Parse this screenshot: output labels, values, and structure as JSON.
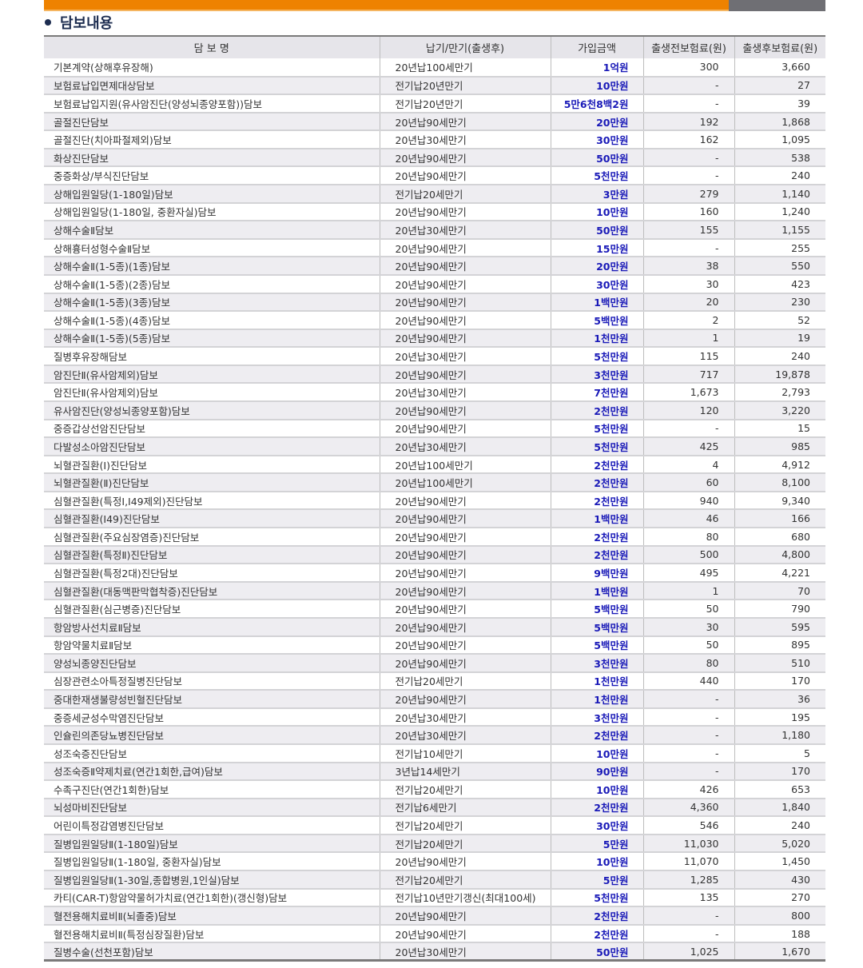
{
  "section_title": "담보내용",
  "colors": {
    "accent_orange": "#ee8200",
    "amount_blue": "#1a1ab8"
  },
  "table": {
    "headers": [
      "담 보 명",
      "납기/만기(출생후)",
      "가입금액",
      "출생전보험료(원)",
      "출생후보험료(원)"
    ],
    "rows": [
      [
        "기본계약(상해후유장해)",
        "20년납100세만기",
        "1억원",
        "300",
        "3,660"
      ],
      [
        "보험료납입면제대상담보",
        "전기납20년만기",
        "10만원",
        "-",
        "27"
      ],
      [
        "보험료납입지원(유사암진단(양성뇌종양포함))담보",
        "전기납20년만기",
        "5만6천8백2원",
        "-",
        "39"
      ],
      [
        "골절진단담보",
        "20년납90세만기",
        "20만원",
        "192",
        "1,868"
      ],
      [
        "골절진단(치아파절제외)담보",
        "20년납30세만기",
        "30만원",
        "162",
        "1,095"
      ],
      [
        "화상진단담보",
        "20년납90세만기",
        "50만원",
        "-",
        "538"
      ],
      [
        "중증화상/부식진단담보",
        "20년납90세만기",
        "5천만원",
        "-",
        "240"
      ],
      [
        "상해입원일당(1-180일)담보",
        "전기납20세만기",
        "3만원",
        "279",
        "1,140"
      ],
      [
        "상해입원일당(1-180일, 중환자실)담보",
        "20년납90세만기",
        "10만원",
        "160",
        "1,240"
      ],
      [
        "상해수술Ⅱ담보",
        "20년납30세만기",
        "50만원",
        "155",
        "1,155"
      ],
      [
        "상해흉터성형수술Ⅱ담보",
        "20년납90세만기",
        "15만원",
        "-",
        "255"
      ],
      [
        "상해수술Ⅱ(1-5종)(1종)담보",
        "20년납90세만기",
        "20만원",
        "38",
        "550"
      ],
      [
        "상해수술Ⅱ(1-5종)(2종)담보",
        "20년납90세만기",
        "30만원",
        "30",
        "423"
      ],
      [
        "상해수술Ⅱ(1-5종)(3종)담보",
        "20년납90세만기",
        "1백만원",
        "20",
        "230"
      ],
      [
        "상해수술Ⅱ(1-5종)(4종)담보",
        "20년납90세만기",
        "5백만원",
        "2",
        "52"
      ],
      [
        "상해수술Ⅱ(1-5종)(5종)담보",
        "20년납90세만기",
        "1천만원",
        "1",
        "19"
      ],
      [
        "질병후유장해담보",
        "20년납30세만기",
        "5천만원",
        "115",
        "240"
      ],
      [
        "암진단Ⅱ(유사암제외)담보",
        "20년납90세만기",
        "3천만원",
        "717",
        "19,878"
      ],
      [
        "암진단Ⅱ(유사암제외)담보",
        "20년납30세만기",
        "7천만원",
        "1,673",
        "2,793"
      ],
      [
        "유사암진단(양성뇌종양포함)담보",
        "20년납90세만기",
        "2천만원",
        "120",
        "3,220"
      ],
      [
        "중증갑상선암진단담보",
        "20년납90세만기",
        "5천만원",
        "-",
        "15"
      ],
      [
        "다발성소아암진단담보",
        "20년납30세만기",
        "5천만원",
        "425",
        "985"
      ],
      [
        "뇌혈관질환(Ⅰ)진단담보",
        "20년납100세만기",
        "2천만원",
        "4",
        "4,912"
      ],
      [
        "뇌혈관질환(Ⅱ)진단담보",
        "20년납100세만기",
        "2천만원",
        "60",
        "8,100"
      ],
      [
        "심혈관질환(특정Ⅰ,I49제외)진단담보",
        "20년납90세만기",
        "2천만원",
        "940",
        "9,340"
      ],
      [
        "심혈관질환(I49)진단담보",
        "20년납90세만기",
        "1백만원",
        "46",
        "166"
      ],
      [
        "심혈관질환(주요심장염증)진단담보",
        "20년납90세만기",
        "2천만원",
        "80",
        "680"
      ],
      [
        "심혈관질환(특정Ⅱ)진단담보",
        "20년납90세만기",
        "2천만원",
        "500",
        "4,800"
      ],
      [
        "심혈관질환(특정2대)진단담보",
        "20년납90세만기",
        "9백만원",
        "495",
        "4,221"
      ],
      [
        "심혈관질환(대동맥판막협착증)진단담보",
        "20년납90세만기",
        "1백만원",
        "1",
        "70"
      ],
      [
        "심혈관질환(심근병증)진단담보",
        "20년납90세만기",
        "5백만원",
        "50",
        "790"
      ],
      [
        "항암방사선치료Ⅱ담보",
        "20년납90세만기",
        "5백만원",
        "30",
        "595"
      ],
      [
        "항암약물치료Ⅱ담보",
        "20년납90세만기",
        "5백만원",
        "50",
        "895"
      ],
      [
        "양성뇌종양진단담보",
        "20년납90세만기",
        "3천만원",
        "80",
        "510"
      ],
      [
        "심장관련소아특정질병진단담보",
        "전기납20세만기",
        "1천만원",
        "440",
        "170"
      ],
      [
        "중대한재생불량성빈혈진단담보",
        "20년납90세만기",
        "1천만원",
        "-",
        "36"
      ],
      [
        "중증세균성수막염진단담보",
        "20년납30세만기",
        "3천만원",
        "-",
        "195"
      ],
      [
        "인슐린의존당뇨병진단담보",
        "20년납30세만기",
        "2천만원",
        "-",
        "1,180"
      ],
      [
        "성조숙증진단담보",
        "전기납10세만기",
        "10만원",
        "-",
        "5"
      ],
      [
        "성조숙증Ⅱ약제치료(연간1회한,급여)담보",
        "3년납14세만기",
        "90만원",
        "-",
        "170"
      ],
      [
        "수족구진단(연간1회한)담보",
        "전기납20세만기",
        "10만원",
        "426",
        "653"
      ],
      [
        "뇌성마비진단담보",
        "전기납6세만기",
        "2천만원",
        "4,360",
        "1,840"
      ],
      [
        "어린이특정감염병진단담보",
        "전기납20세만기",
        "30만원",
        "546",
        "240"
      ],
      [
        "질병입원일당Ⅱ(1-180일)담보",
        "전기납20세만기",
        "5만원",
        "11,030",
        "5,020"
      ],
      [
        "질병입원일당Ⅱ(1-180일, 중환자실)담보",
        "20년납90세만기",
        "10만원",
        "11,070",
        "1,450"
      ],
      [
        "질병입원일당Ⅱ(1-30일,종합병원,1인실)담보",
        "전기납20세만기",
        "5만원",
        "1,285",
        "430"
      ],
      [
        "카티(CAR-T)항암약물허가치료(연간1회한)(갱신형)담보",
        "전기납10년만기갱신(최대100세)",
        "5천만원",
        "135",
        "270"
      ],
      [
        "혈전용해치료비Ⅱ(뇌졸중)담보",
        "20년납90세만기",
        "2천만원",
        "-",
        "800"
      ],
      [
        "혈전용해치료비Ⅱ(특정심장질환)담보",
        "20년납90세만기",
        "2천만원",
        "-",
        "188"
      ],
      [
        "질병수술(선천포함)담보",
        "20년납30세만기",
        "50만원",
        "1,025",
        "1,670"
      ]
    ]
  }
}
